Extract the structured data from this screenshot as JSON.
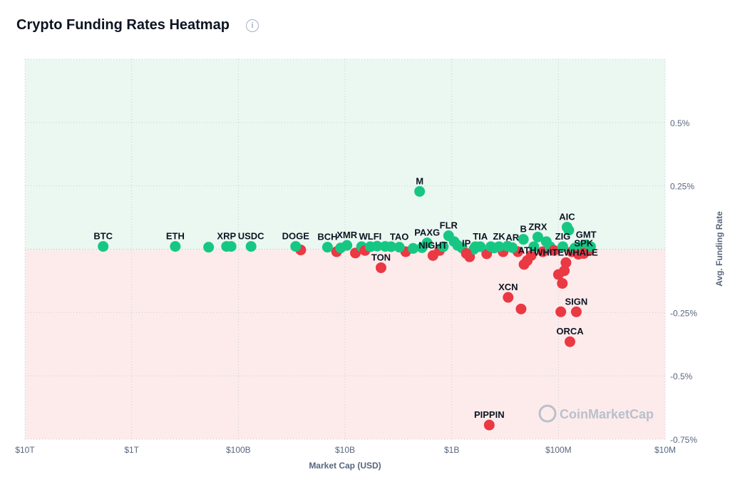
{
  "header": {
    "title": "Crypto Funding Rates Heatmap",
    "info_icon": "info-circle-icon"
  },
  "watermark": "CoinMarketCap",
  "chart_data": {
    "type": "scatter",
    "title": "Crypto Funding Rates Heatmap",
    "xlabel": "Market Cap (USD)",
    "ylabel": "Avg. Funding Rate",
    "x_scale": "log, reversed",
    "xlim": [
      10000000000000,
      10000000
    ],
    "ylim": [
      -0.75,
      0.75
    ],
    "x_ticks": [
      {
        "v": 10000000000000,
        "label": "$10T"
      },
      {
        "v": 1000000000000,
        "label": "$1T"
      },
      {
        "v": 100000000000,
        "label": "$100B"
      },
      {
        "v": 10000000000,
        "label": "$10B"
      },
      {
        "v": 1000000000,
        "label": "$1B"
      },
      {
        "v": 100000000,
        "label": "$100M"
      },
      {
        "v": 10000000,
        "label": "$10M"
      }
    ],
    "y_ticks": [
      {
        "v": 0.5,
        "label": "0.5%"
      },
      {
        "v": 0.25,
        "label": "0.25%"
      },
      {
        "v": -0.25,
        "label": "-0.25%"
      },
      {
        "v": -0.5,
        "label": "-0.5%"
      },
      {
        "v": -0.75,
        "label": "-0.75%"
      }
    ],
    "grid": true,
    "colors": {
      "positive": "#16c784",
      "negative": "#ea3943",
      "positive_bg": "#eaf8f1",
      "negative_bg": "#fdebeb"
    },
    "labeled_points": [
      {
        "name": "BTC",
        "cap": 1850000000000,
        "rate": 0.011
      },
      {
        "name": "ETH",
        "cap": 390000000000,
        "rate": 0.011
      },
      {
        "name": "XRP",
        "cap": 129000000000,
        "rate": 0.011
      },
      {
        "name": "USDC",
        "cap": 76000000000,
        "rate": 0.011
      },
      {
        "name": "DOGE",
        "cap": 29000000000,
        "rate": 0.011
      },
      {
        "name": "BCH",
        "cap": 14600000000,
        "rate": 0.008
      },
      {
        "name": "XMR",
        "cap": 9600000000,
        "rate": 0.015
      },
      {
        "name": "WLFI",
        "cap": 5800000000,
        "rate": 0.01
      },
      {
        "name": "TAO",
        "cap": 3100000000,
        "rate": 0.008
      },
      {
        "name": "TON",
        "cap": 4600000000,
        "rate": -0.073
      },
      {
        "name": "M",
        "cap": 2000000000,
        "rate": 0.228
      },
      {
        "name": "PAXG",
        "cap": 1700000000,
        "rate": 0.025
      },
      {
        "name": "NIGHT",
        "cap": 1500000000,
        "rate": -0.025
      },
      {
        "name": "FLR",
        "cap": 1070000000,
        "rate": 0.053
      },
      {
        "name": "IP",
        "cap": 730000000,
        "rate": -0.017
      },
      {
        "name": "TIA",
        "cap": 540000000,
        "rate": 0.01
      },
      {
        "name": "ZK",
        "cap": 360000000,
        "rate": 0.01
      },
      {
        "name": "AR",
        "cap": 270000000,
        "rate": 0.006
      },
      {
        "name": "B",
        "cap": 213000000,
        "rate": 0.039
      },
      {
        "name": "ATH",
        "cap": 196000000,
        "rate": -0.045
      },
      {
        "name": "XCN",
        "cap": 296000000,
        "rate": -0.19
      },
      {
        "name": "ZRX",
        "cap": 156000000,
        "rate": 0.048
      },
      {
        "name": "ZIG",
        "cap": 91000000,
        "rate": 0.01
      },
      {
        "name": "AIC",
        "cap": 83000000,
        "rate": 0.087
      },
      {
        "name": "GMT",
        "cap": 55000000,
        "rate": 0.017
      },
      {
        "name": "SPK",
        "cap": 58000000,
        "rate": -0.017
      },
      {
        "name": "WHITEWHALE",
        "cap": 85000000,
        "rate": -0.053
      },
      {
        "name": "SIGN",
        "cap": 68000000,
        "rate": -0.247
      },
      {
        "name": "ORCA",
        "cap": 78000000,
        "rate": -0.365
      },
      {
        "name": "PIPPIN",
        "cap": 445000000,
        "rate": -0.694
      }
    ],
    "other_points": [
      [
        190000000000,
        0.008
      ],
      [
        117000000000,
        0.011
      ],
      [
        26000000000,
        -0.003
      ],
      [
        12000000000,
        -0.01
      ],
      [
        11000000000,
        0.005
      ],
      [
        8000000000,
        -0.015
      ],
      [
        7000000000,
        0.01
      ],
      [
        6500000000,
        -0.005
      ],
      [
        5000000000,
        0.012
      ],
      [
        4200000000,
        0.011
      ],
      [
        3700000000,
        0.01
      ],
      [
        2700000000,
        -0.01
      ],
      [
        2300000000,
        0.003
      ],
      [
        1900000000,
        0.006
      ],
      [
        1300000000,
        -0.005
      ],
      [
        1200000000,
        0.01
      ],
      [
        950000000,
        0.03
      ],
      [
        880000000,
        0.015
      ],
      [
        800000000,
        0.005
      ],
      [
        680000000,
        -0.03
      ],
      [
        620000000,
        0.0
      ],
      [
        600000000,
        0.01
      ],
      [
        470000000,
        -0.018
      ],
      [
        430000000,
        0.01
      ],
      [
        400000000,
        0.005
      ],
      [
        330000000,
        -0.01
      ],
      [
        300000000,
        0.012
      ],
      [
        240000000,
        -0.01
      ],
      [
        224000000,
        -0.236
      ],
      [
        210000000,
        -0.06
      ],
      [
        180000000,
        -0.025
      ],
      [
        170000000,
        0.01
      ],
      [
        140000000,
        -0.01
      ],
      [
        130000000,
        0.03
      ],
      [
        120000000,
        0.01
      ],
      [
        110000000,
        -0.005
      ],
      [
        100000000,
        -0.1
      ],
      [
        95000000,
        -0.247
      ],
      [
        92000000,
        -0.135
      ],
      [
        88000000,
        -0.085
      ],
      [
        80000000,
        0.075
      ],
      [
        75000000,
        -0.01
      ],
      [
        70000000,
        0.005
      ],
      [
        65000000,
        -0.02
      ],
      [
        62000000,
        0.01
      ],
      [
        52000000,
        -0.005
      ],
      [
        50000000,
        0.01
      ]
    ]
  }
}
